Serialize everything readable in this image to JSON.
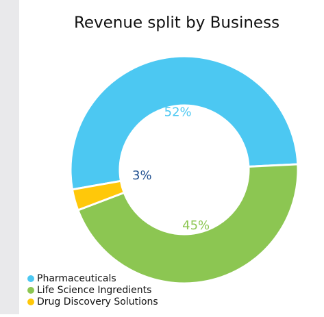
{
  "chart_data": {
    "type": "pie",
    "title": "Revenue split by Business",
    "categories": [
      "Pharmaceuticals",
      "Life Science Ingredients",
      "Drug Discovery Solutions"
    ],
    "values": [
      52,
      45,
      3
    ],
    "value_labels": [
      "52%",
      "45%",
      "3%"
    ],
    "colors": [
      "#4cc8f2",
      "#8cc652",
      "#ffc80a"
    ],
    "label_colors": [
      "#4cc8f2",
      "#8cc652",
      "#1f4f8f"
    ],
    "legend": "bottom-left"
  }
}
